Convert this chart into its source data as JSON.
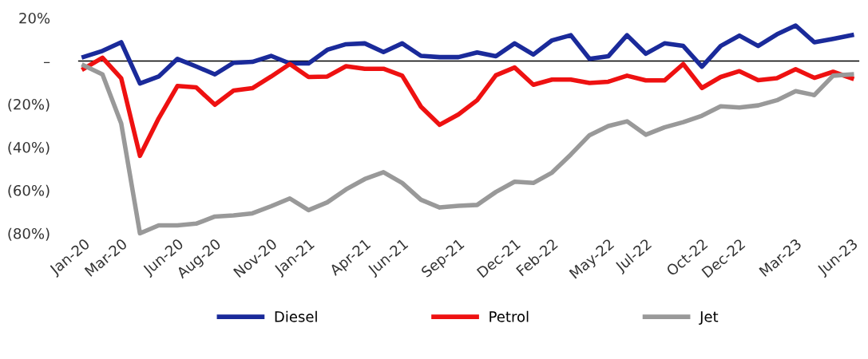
{
  "chart_data": {
    "type": "line",
    "categories": [
      "Jan-20",
      null,
      "Mar-20",
      null,
      null,
      "Jun-20",
      null,
      "Aug-20",
      null,
      null,
      "Nov-20",
      null,
      "Jan-21",
      null,
      null,
      "Apr-21",
      null,
      "Jun-21",
      null,
      null,
      "Sep-21",
      null,
      null,
      "Dec-21",
      null,
      "Feb-22",
      null,
      null,
      "May-22",
      null,
      "Jul-22",
      null,
      null,
      "Oct-22",
      null,
      "Dec-22",
      null,
      null,
      "Mar-23",
      null,
      null,
      "Jun-23"
    ],
    "series": [
      {
        "name": "Diesel",
        "color": "#1a2a9a",
        "values": [
          1.9,
          4.7,
          8.7,
          -10.4,
          -7.2,
          1,
          -2.5,
          -6.2,
          -0.8,
          -0.4,
          2.4,
          -1.1,
          -1.1,
          5.2,
          7.8,
          8.2,
          4.2,
          8.2,
          2.4,
          1.8,
          1.8,
          4,
          2.2,
          8.2,
          3,
          9.6,
          12,
          1,
          2.2,
          12,
          3.4,
          8.2,
          7,
          -2.6,
          7,
          11.8,
          7,
          12.4,
          16.5,
          8.7,
          10.3,
          12
        ]
      },
      {
        "name": "Petrol",
        "color": "#ee1111",
        "values": [
          -3.6,
          1.5,
          -8,
          -44,
          -26.6,
          -11.6,
          -12.2,
          -20.3,
          -13.7,
          -12.6,
          -7.2,
          -1.4,
          -7.4,
          -7.2,
          -2.4,
          -3.6,
          -3.6,
          -6.8,
          -21.2,
          -29.6,
          -24.8,
          -18.2,
          -6.6,
          -3,
          -11,
          -8.6,
          -8.6,
          -10.2,
          -9.6,
          -6.8,
          -9,
          -9,
          -1.4,
          -12.5,
          -7.4,
          -4.7,
          -8.9,
          -8,
          -3.8,
          -7.8,
          -5,
          -8
        ]
      },
      {
        "name": "Jet",
        "color": "#999999",
        "values": [
          -2,
          -6.2,
          -29,
          -80,
          -76.3,
          -76.3,
          -75.5,
          -72.2,
          -71.7,
          -70.7,
          -67.4,
          -63.8,
          -69.2,
          -65.6,
          -59.6,
          -54.8,
          -51.6,
          -56.6,
          -64.4,
          -68,
          -67.2,
          -66.8,
          -60.8,
          -56,
          -56.6,
          -51.8,
          -43.4,
          -34.4,
          -30.2,
          -28,
          -34.2,
          -30.8,
          -28.4,
          -25.4,
          -21,
          -21.6,
          -20.6,
          -18.2,
          -14,
          -15.8,
          -6.8,
          -6.2
        ]
      }
    ],
    "ylim": [
      -80,
      20
    ],
    "yticks": [
      {
        "value": 20,
        "label": "20%"
      },
      {
        "value": 0,
        "label": "–"
      },
      {
        "value": -20,
        "label": "(20%)"
      },
      {
        "value": -40,
        "label": "(40%)"
      },
      {
        "value": -60,
        "label": "(60%)"
      },
      {
        "value": -80,
        "label": "(80%)"
      }
    ],
    "ref_lines": [
      {
        "axis": "y",
        "value": 0,
        "color": "#000000"
      }
    ],
    "legend": "bottom",
    "grid": false,
    "marker": "none",
    "line_style": "solid"
  }
}
